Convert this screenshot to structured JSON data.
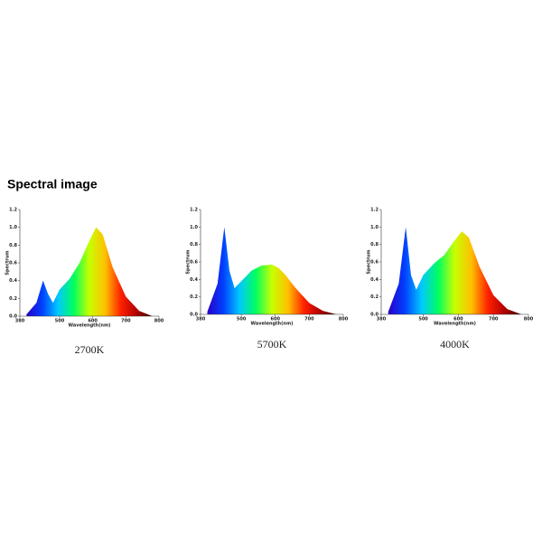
{
  "heading": "Spectral image",
  "chart_data": [
    {
      "type": "area",
      "caption": "2700K",
      "xlabel": "Wavelength(nm)",
      "ylabel": "Spectrum",
      "x": [
        400,
        430,
        450,
        465,
        480,
        500,
        530,
        560,
        590,
        610,
        630,
        660,
        700,
        740,
        780
      ],
      "values": [
        0.02,
        0.15,
        0.4,
        0.25,
        0.15,
        0.3,
        0.42,
        0.6,
        0.85,
        1.0,
        0.92,
        0.55,
        0.22,
        0.06,
        0.0
      ],
      "xlim": [
        380,
        800
      ],
      "xticks": [
        380,
        500,
        600,
        700,
        800
      ],
      "ylim": [
        0,
        1.2
      ],
      "yticks": [
        {
          "value": 0,
          "label": "0.0"
        },
        0.2,
        0.4,
        0.6,
        0.8,
        {
          "value": 1,
          "label": "1.0"
        },
        1.2
      ],
      "gradient": [
        "#2a00c8",
        "#0040ff",
        "#00c8ff",
        "#00ff60",
        "#c8ff00",
        "#ffc000",
        "#ff2000",
        "#b00000",
        "#400000"
      ]
    },
    {
      "type": "area",
      "caption": "5700K",
      "xlabel": "Wavelength(nm)",
      "ylabel": "Spectrum",
      "x": [
        400,
        430,
        450,
        465,
        480,
        500,
        530,
        560,
        590,
        610,
        630,
        660,
        700,
        740,
        780
      ],
      "values": [
        0.03,
        0.35,
        1.0,
        0.5,
        0.3,
        0.38,
        0.5,
        0.56,
        0.57,
        0.53,
        0.45,
        0.3,
        0.13,
        0.04,
        0.0
      ],
      "xlim": [
        380,
        800
      ],
      "xticks": [
        380,
        500,
        600,
        700,
        800
      ],
      "ylim": [
        0,
        1.2
      ],
      "yticks": [
        {
          "value": 0,
          "label": "0.0"
        },
        0.2,
        0.4,
        0.6,
        0.8,
        {
          "value": 1,
          "label": "1.0"
        },
        1.2
      ],
      "gradient": [
        "#2a00c8",
        "#0040ff",
        "#00c8ff",
        "#00ff60",
        "#c8ff00",
        "#ffc000",
        "#ff2000",
        "#b00000",
        "#400000"
      ]
    },
    {
      "type": "area",
      "caption": "4000K",
      "xlabel": "Wavelength(nm)",
      "ylabel": "Spectrum",
      "x": [
        400,
        430,
        450,
        465,
        480,
        500,
        530,
        560,
        590,
        610,
        630,
        660,
        700,
        740,
        780
      ],
      "values": [
        0.03,
        0.35,
        1.0,
        0.45,
        0.28,
        0.45,
        0.58,
        0.68,
        0.85,
        0.95,
        0.88,
        0.55,
        0.22,
        0.06,
        0.0
      ],
      "xlim": [
        380,
        800
      ],
      "xticks": [
        380,
        500,
        600,
        700,
        800
      ],
      "ylim": [
        0,
        1.2
      ],
      "yticks": [
        {
          "value": 0,
          "label": "0.0"
        },
        0.2,
        0.4,
        0.6,
        0.8,
        {
          "value": 1,
          "label": "1.0"
        },
        1.2
      ],
      "gradient": [
        "#2a00c8",
        "#0040ff",
        "#00c8ff",
        "#00ff60",
        "#c8ff00",
        "#ffc000",
        "#ff2000",
        "#b00000",
        "#400000"
      ]
    }
  ]
}
